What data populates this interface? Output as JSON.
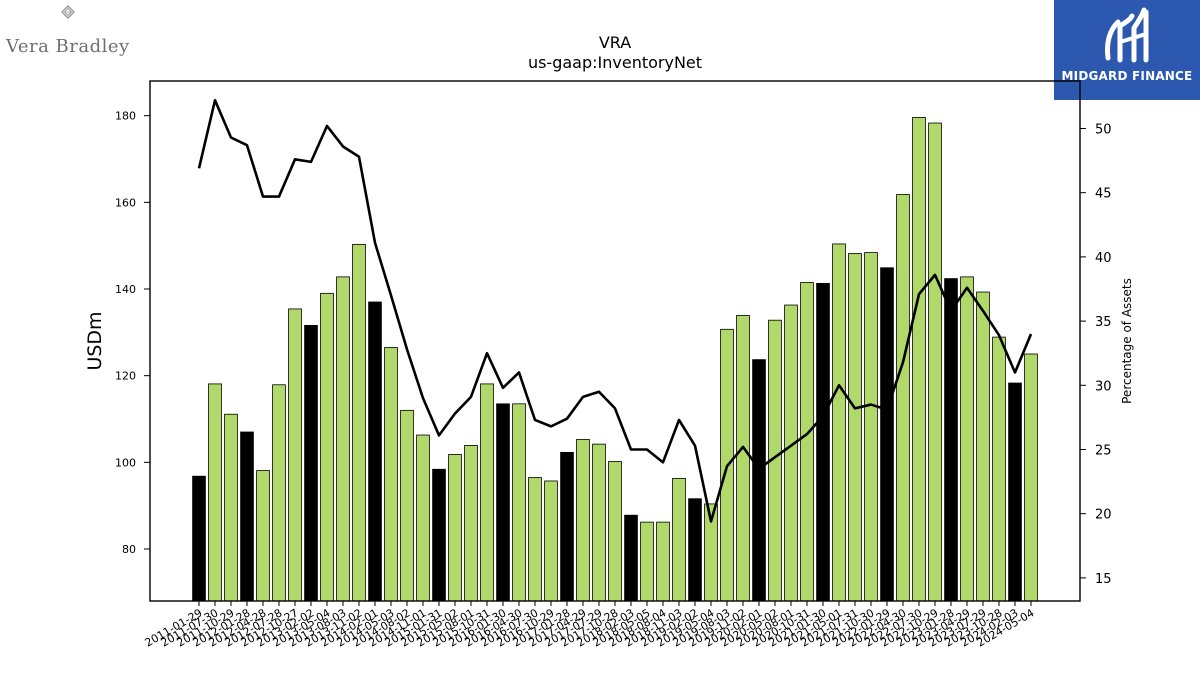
{
  "brand": {
    "name": "Vera Bradley"
  },
  "watermark": {
    "name": "MIDGARD FINANCE",
    "color": "#2c58b0"
  },
  "chart_data": {
    "type": "bar",
    "title": "VRA",
    "subtitle": "us-gaap:InventoryNet",
    "ylabel": "USDm",
    "y2label": "Percentage of Assets",
    "ylim": [
      68,
      188
    ],
    "y2lim": [
      13.2,
      53.7
    ],
    "yticks": [
      80,
      100,
      120,
      140,
      160,
      180
    ],
    "y2ticks": [
      15,
      20,
      25,
      30,
      35,
      40,
      45,
      50
    ],
    "colors": {
      "bar_default": "#b0d96a",
      "bar_highlight": "#000000",
      "line": "#000000"
    },
    "categories": [
      "2011-01-29",
      "2011-07-30",
      "2011-10-29",
      "2012-01-28",
      "2012-04-28",
      "2012-07-28",
      "2012-10-27",
      "2013-02-02",
      "2013-05-04",
      "2013-08-03",
      "2013-11-02",
      "2014-02-01",
      "2014-05-03",
      "2014-08-02",
      "2014-11-01",
      "2015-01-31",
      "2015-05-02",
      "2015-08-01",
      "2015-10-31",
      "2016-01-30",
      "2016-04-30",
      "2016-07-30",
      "2016-10-29",
      "2017-01-28",
      "2017-04-29",
      "2017-07-29",
      "2017-10-28",
      "2018-02-03",
      "2018-05-05",
      "2018-08-04",
      "2018-11-03",
      "2019-02-02",
      "2019-05-04",
      "2019-08-03",
      "2019-11-02",
      "2020-02-01",
      "2020-05-02",
      "2020-08-01",
      "2020-10-31",
      "2021-01-30",
      "2021-05-01",
      "2021-07-31",
      "2021-10-30",
      "2022-01-29",
      "2022-04-30",
      "2022-07-30",
      "2022-10-29",
      "2023-01-28",
      "2023-04-29",
      "2023-07-29",
      "2023-10-28",
      "2024-02-03",
      "2024-05-04"
    ],
    "series": [
      {
        "kind": "bar",
        "axis": "left",
        "values": [
          96.8,
          118.1,
          111.1,
          107.0,
          98.1,
          117.9,
          135.4,
          131.6,
          139.0,
          142.8,
          150.3,
          137.0,
          126.5,
          112.0,
          106.3,
          98.4,
          101.8,
          103.9,
          118.1,
          113.5,
          113.5,
          96.5,
          95.7,
          102.3,
          105.3,
          104.2,
          100.2,
          87.8,
          86.2,
          86.2,
          96.3,
          91.6,
          90.4,
          130.7,
          133.9,
          123.7,
          132.8,
          136.3,
          141.5,
          141.3,
          150.4,
          148.2,
          148.4,
          144.9,
          161.8,
          179.6,
          178.3,
          142.4,
          142.8,
          139.3,
          128.9,
          118.3,
          125.0
        ],
        "highlight": [
          true,
          false,
          false,
          true,
          false,
          false,
          false,
          true,
          false,
          false,
          false,
          true,
          false,
          false,
          false,
          true,
          false,
          false,
          false,
          true,
          false,
          false,
          false,
          true,
          false,
          false,
          false,
          true,
          false,
          false,
          false,
          true,
          false,
          false,
          false,
          true,
          false,
          false,
          false,
          true,
          false,
          false,
          false,
          true,
          false,
          false,
          false,
          true,
          false,
          false,
          false,
          true,
          false
        ]
      },
      {
        "kind": "line",
        "axis": "right",
        "values": [
          46.9,
          52.2,
          49.3,
          48.7,
          44.7,
          44.7,
          47.6,
          47.4,
          50.2,
          48.6,
          47.8,
          41.1,
          37.0,
          32.8,
          29.0,
          26.1,
          27.8,
          29.1,
          32.5,
          29.8,
          31.0,
          27.3,
          26.8,
          27.4,
          29.1,
          29.5,
          28.2,
          25.0,
          25.0,
          24.0,
          27.3,
          25.3,
          19.4,
          23.7,
          25.2,
          23.5,
          24.4,
          25.3,
          26.2,
          27.6,
          30.0,
          28.2,
          28.5,
          28.1,
          31.8,
          37.1,
          38.6,
          35.8,
          37.6,
          35.8,
          33.9,
          31.0,
          34.0
        ]
      }
    ]
  }
}
